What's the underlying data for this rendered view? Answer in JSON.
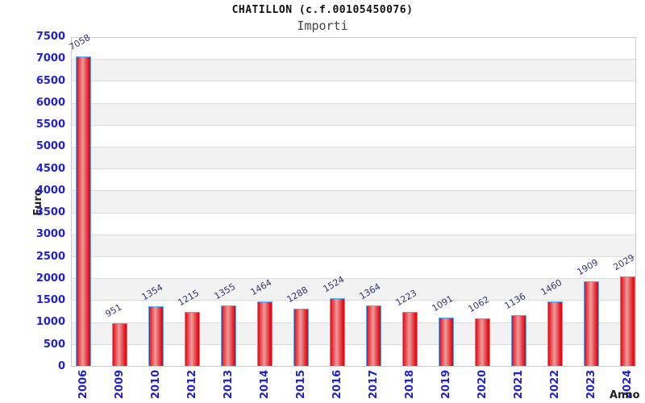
{
  "chart_data": {
    "type": "bar",
    "title": "CHATILLON (c.f.00105450076)",
    "subtitle": "Importi",
    "xlabel": "Anno",
    "ylabel": "Euro",
    "categories": [
      "2006",
      "2009",
      "2010",
      "2012",
      "2013",
      "2014",
      "2015",
      "2016",
      "2017",
      "2018",
      "2019",
      "2020",
      "2021",
      "2022",
      "2023",
      "2024"
    ],
    "values": [
      7058,
      951,
      1354,
      1215,
      1355,
      1464,
      1288,
      1524,
      1364,
      1223,
      1091,
      1062,
      1136,
      1460,
      1909,
      2029
    ],
    "ylim": [
      0,
      7500
    ],
    "ytick_step": 500,
    "grid": "horizontal-bands",
    "legend": "none",
    "colors": {
      "bar_edge": "#e30b16",
      "bar_center": "#ec9c9c",
      "bar_border": "#56a9f7",
      "tick_label": "#2222cc",
      "value_label": "#333377",
      "band_alt": "#f2f2f2",
      "band_main": "#ffffff",
      "gridline": "#dddddd",
      "plot_border": "#cccccc",
      "axis_title": "#222222",
      "title": "#111111",
      "subtitle": "#444444"
    }
  }
}
